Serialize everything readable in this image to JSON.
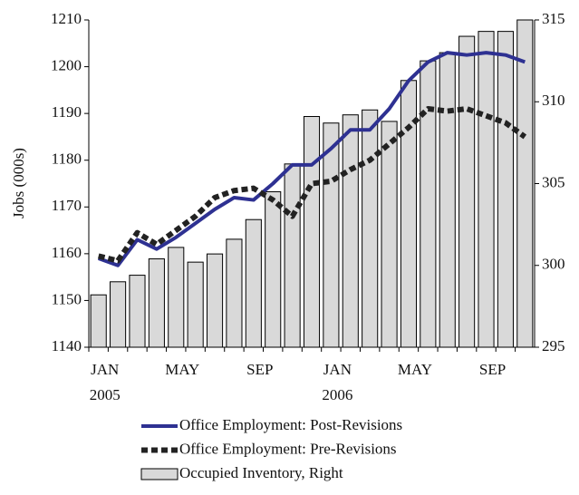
{
  "chart_data": {
    "type": "combo",
    "y_label": "Jobs (000s)",
    "categories": [
      "JAN",
      null,
      null,
      null,
      "MAY",
      null,
      null,
      null,
      "SEP",
      null,
      null,
      null,
      "JAN",
      null,
      null,
      null,
      "MAY",
      null,
      null,
      null,
      "SEP",
      null,
      null
    ],
    "category_years": [
      "2005",
      null,
      null,
      null,
      null,
      null,
      null,
      null,
      null,
      null,
      null,
      null,
      "2006",
      null,
      null,
      null,
      null,
      null,
      null,
      null,
      null,
      null,
      null
    ],
    "ylim": [
      1140,
      1210
    ],
    "yticks": [
      1140,
      1150,
      1160,
      1170,
      1180,
      1190,
      1200,
      1210
    ],
    "y2lim": [
      295,
      315
    ],
    "y2ticks": [
      295,
      300,
      305,
      310,
      315
    ],
    "series": [
      {
        "name": "Office Employment: Post-Revisions",
        "type": "line",
        "style": "solid",
        "color": "#2e3192",
        "values": [
          1159,
          1157.5,
          1163,
          1161,
          1163.5,
          1166.5,
          1169.5,
          1172,
          1171.5,
          1175,
          1179,
          1179,
          1182.5,
          1186.5,
          1186.5,
          1191,
          1197,
          1201,
          1203,
          1202.5,
          1203,
          1202.5,
          1201
        ]
      },
      {
        "name": "Office Employment: Pre-Revisions",
        "type": "line",
        "style": "dashed",
        "color": "#222222",
        "values": [
          1159.5,
          1158.5,
          1164.5,
          1162,
          1165,
          1168,
          1172,
          1173.5,
          1174,
          1171.5,
          1168,
          1175,
          1175.5,
          1178,
          1180,
          1183.5,
          1187,
          1191,
          1190.5,
          1191,
          1189.5,
          1188,
          1185
        ]
      },
      {
        "name": "Occupied Inventory, Right",
        "type": "bar",
        "axis": "y2",
        "color": "#d9d9d9",
        "values": [
          298.2,
          299.0,
          299.4,
          300.4,
          301.1,
          300.2,
          300.7,
          301.6,
          302.8,
          304.5,
          306.2,
          309.1,
          308.7,
          309.2,
          309.5,
          308.8,
          311.3,
          312.5,
          313.0,
          314.0,
          314.3,
          314.3,
          315
        ]
      }
    ]
  }
}
